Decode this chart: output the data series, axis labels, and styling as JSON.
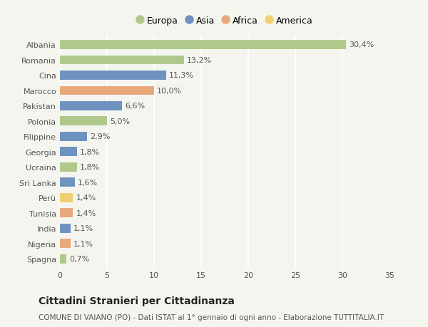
{
  "countries": [
    "Albania",
    "Romania",
    "Cina",
    "Marocco",
    "Pakistan",
    "Polonia",
    "Filippine",
    "Georgia",
    "Ucraina",
    "Sri Lanka",
    "Perù",
    "Tunisia",
    "India",
    "Nigeria",
    "Spagna"
  ],
  "values": [
    30.4,
    13.2,
    11.3,
    10.0,
    6.6,
    5.0,
    2.9,
    1.8,
    1.8,
    1.6,
    1.4,
    1.4,
    1.1,
    1.1,
    0.7
  ],
  "labels": [
    "30,4%",
    "13,2%",
    "11,3%",
    "10,0%",
    "6,6%",
    "5,0%",
    "2,9%",
    "1,8%",
    "1,8%",
    "1,6%",
    "1,4%",
    "1,4%",
    "1,1%",
    "1,1%",
    "0,7%"
  ],
  "continents": [
    "Europa",
    "Europa",
    "Asia",
    "Africa",
    "Asia",
    "Europa",
    "Asia",
    "Asia",
    "Europa",
    "Asia",
    "America",
    "Africa",
    "Asia",
    "Africa",
    "Europa"
  ],
  "continent_colors": {
    "Europa": "#aec98a",
    "Asia": "#6f93c0",
    "Africa": "#e8a97a",
    "America": "#f0d070"
  },
  "legend_order": [
    "Europa",
    "Asia",
    "Africa",
    "America"
  ],
  "title": "Cittadini Stranieri per Cittadinanza",
  "subtitle": "COMUNE DI VAIANO (PO) - Dati ISTAT al 1° gennaio di ogni anno - Elaborazione TUTTITALIA.IT",
  "xlim": [
    0,
    35
  ],
  "xticks": [
    0,
    5,
    10,
    15,
    20,
    25,
    30,
    35
  ],
  "background_color": "#f5f5f0",
  "grid_color": "#ffffff",
  "bar_height": 0.6,
  "title_fontsize": 10,
  "subtitle_fontsize": 7.5,
  "tick_fontsize": 8,
  "label_fontsize": 8,
  "legend_fontsize": 9
}
